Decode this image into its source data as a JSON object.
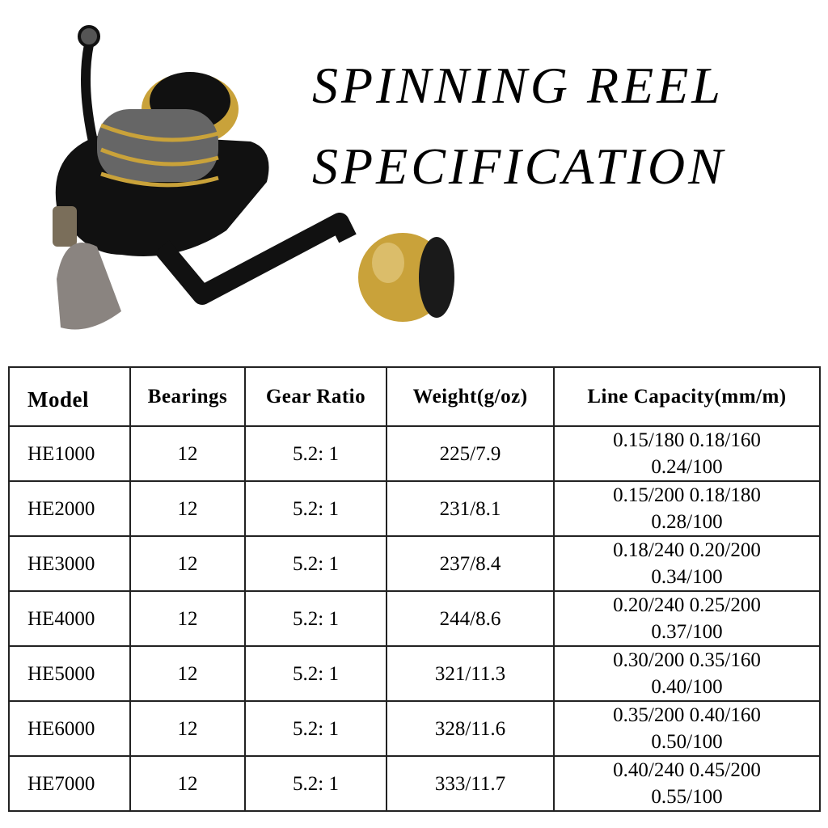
{
  "title": {
    "line1": "SPINNING REEL",
    "line2": "SPECIFICATION"
  },
  "image": {
    "description_icon": "spinning-reel-photo",
    "colors": {
      "body": "#111111",
      "gold": "#c9a23a"
    }
  },
  "table": {
    "headers": [
      "Model",
      "Bearings",
      "Gear Ratio",
      "Weight(g/oz)",
      "Line Capacity(mm/m)"
    ],
    "rows": [
      {
        "model": "HE1000",
        "bearings": "12",
        "gear_ratio": "5.2: 1",
        "weight": "225/7.9",
        "capacity_1": "0.15/180 0.18/160",
        "capacity_2": "0.24/100"
      },
      {
        "model": "HE2000",
        "bearings": "12",
        "gear_ratio": "5.2: 1",
        "weight": "231/8.1",
        "capacity_1": "0.15/200 0.18/180",
        "capacity_2": "0.28/100"
      },
      {
        "model": "HE3000",
        "bearings": "12",
        "gear_ratio": "5.2: 1",
        "weight": "237/8.4",
        "capacity_1": "0.18/240 0.20/200",
        "capacity_2": "0.34/100"
      },
      {
        "model": "HE4000",
        "bearings": "12",
        "gear_ratio": "5.2: 1",
        "weight": "244/8.6",
        "capacity_1": "0.20/240 0.25/200",
        "capacity_2": "0.37/100"
      },
      {
        "model": "HE5000",
        "bearings": "12",
        "gear_ratio": "5.2: 1",
        "weight": "321/11.3",
        "capacity_1": "0.30/200 0.35/160",
        "capacity_2": "0.40/100"
      },
      {
        "model": "HE6000",
        "bearings": "12",
        "gear_ratio": "5.2: 1",
        "weight": "328/11.6",
        "capacity_1": "0.35/200 0.40/160",
        "capacity_2": "0.50/100"
      },
      {
        "model": "HE7000",
        "bearings": "12",
        "gear_ratio": "5.2: 1",
        "weight": "333/11.7",
        "capacity_1": "0.40/240 0.45/200",
        "capacity_2": "0.55/100"
      }
    ]
  }
}
